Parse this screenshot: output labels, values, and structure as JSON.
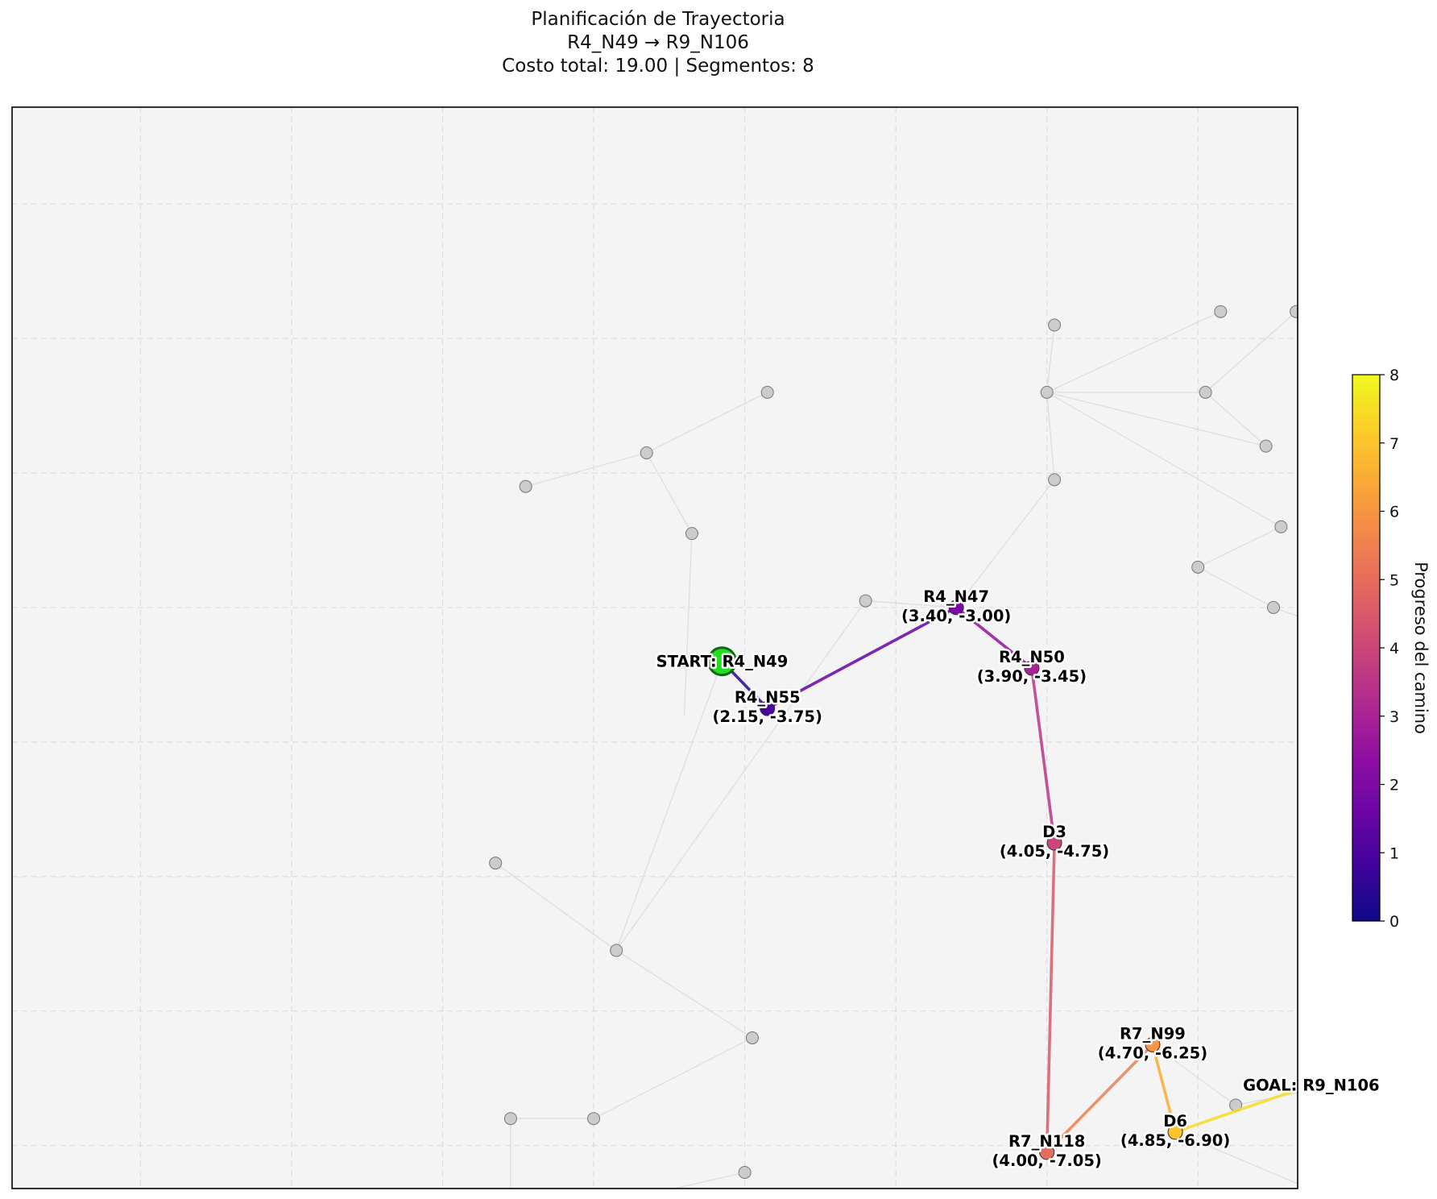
{
  "title": {
    "line1": "Planificación de Trayectoria",
    "line2": "R4_N49 → R9_N106",
    "line3": "Costo total: 19.00 | Segmentos: 8"
  },
  "colors": {
    "background": "#f4f4f4",
    "grid": "#dcdcdc",
    "graph_edge": "#dddddd",
    "graph_node": "#cccccc",
    "start_node": "#22dd22",
    "goal_node": "#ee0000",
    "colormap": "plasma"
  },
  "chart_data": {
    "type": "scatter",
    "grid": true,
    "legend": "none",
    "xlim": [
      -2.85,
      5.66
    ],
    "ylim": [
      -7.32,
      0.72
    ],
    "path": {
      "cost": 19.0,
      "segments": 8,
      "nodes": [
        {
          "id": "R4_N49",
          "label": "START: R4_N49",
          "x": 1.85,
          "y": -3.4,
          "role": "start",
          "progress": 0
        },
        {
          "id": "R4_N55",
          "label": "R4_N55",
          "coord_text": "(2.15, -3.75)",
          "x": 2.15,
          "y": -3.75,
          "progress": 1
        },
        {
          "id": "R4_N47",
          "label": "R4_N47",
          "coord_text": "(3.40, -3.00)",
          "x": 3.4,
          "y": -3.0,
          "progress": 2
        },
        {
          "id": "R4_N50",
          "label": "R4_N50",
          "coord_text": "(3.90, -3.45)",
          "x": 3.9,
          "y": -3.45,
          "progress": 3
        },
        {
          "id": "D3",
          "label": "D3",
          "coord_text": "(4.05, -4.75)",
          "x": 4.05,
          "y": -4.75,
          "progress": 4
        },
        {
          "id": "R7_N118",
          "label": "R7_N118",
          "coord_text": "(4.00, -7.05)",
          "x": 4.0,
          "y": -7.05,
          "progress": 5
        },
        {
          "id": "R7_N99",
          "label": "R7_N99",
          "coord_text": "(4.70, -6.25)",
          "x": 4.7,
          "y": -6.25,
          "progress": 6
        },
        {
          "id": "D6",
          "label": "D6",
          "coord_text": "(4.85, -6.90)",
          "x": 4.85,
          "y": -6.9,
          "progress": 7
        },
        {
          "id": "R9_N106",
          "label": "GOAL: R9_N106",
          "x": 5.75,
          "y": -6.55,
          "role": "goal",
          "progress": 8
        }
      ]
    },
    "graph_nodes": [
      [
        4.05,
        -0.9
      ],
      [
        5.15,
        -0.8
      ],
      [
        5.65,
        -0.8
      ],
      [
        4.0,
        -1.4
      ],
      [
        5.05,
        -1.4
      ],
      [
        5.45,
        -1.8
      ],
      [
        4.05,
        -2.05
      ],
      [
        5.55,
        -2.4
      ],
      [
        5.0,
        -2.7
      ],
      [
        5.5,
        -3.0
      ],
      [
        6.25,
        -3.3
      ],
      [
        2.15,
        -1.4
      ],
      [
        1.35,
        -1.85
      ],
      [
        0.55,
        -2.1
      ],
      [
        1.65,
        -2.45
      ],
      [
        2.8,
        -2.95
      ],
      [
        0.35,
        -4.9
      ],
      [
        1.15,
        -5.55
      ],
      [
        2.05,
        -6.2
      ],
      [
        0.45,
        -6.8
      ],
      [
        1.0,
        -6.8
      ],
      [
        2.0,
        -7.2
      ],
      [
        0.45,
        -7.6
      ],
      [
        5.95,
        -5.95
      ],
      [
        6.15,
        -6.5
      ],
      [
        5.25,
        -6.7
      ],
      [
        5.8,
        -7.35
      ]
    ],
    "graph_edges": [
      [
        [
          2.15,
          -1.4
        ],
        [
          1.35,
          -1.85
        ]
      ],
      [
        [
          1.35,
          -1.85
        ],
        [
          0.55,
          -2.1
        ]
      ],
      [
        [
          1.35,
          -1.85
        ],
        [
          1.65,
          -2.45
        ]
      ],
      [
        [
          1.65,
          -2.45
        ],
        [
          1.6,
          -3.8
        ]
      ],
      [
        [
          4.0,
          -1.4
        ],
        [
          4.05,
          -0.9
        ]
      ],
      [
        [
          4.0,
          -1.4
        ],
        [
          5.05,
          -1.4
        ]
      ],
      [
        [
          4.0,
          -1.4
        ],
        [
          5.45,
          -1.8
        ]
      ],
      [
        [
          4.0,
          -1.4
        ],
        [
          5.15,
          -0.8
        ]
      ],
      [
        [
          4.0,
          -1.4
        ],
        [
          5.55,
          -2.4
        ]
      ],
      [
        [
          4.0,
          -1.4
        ],
        [
          4.05,
          -2.05
        ]
      ],
      [
        [
          5.05,
          -1.4
        ],
        [
          5.65,
          -0.8
        ]
      ],
      [
        [
          5.05,
          -1.4
        ],
        [
          5.45,
          -1.8
        ]
      ],
      [
        [
          4.05,
          -2.05
        ],
        [
          3.4,
          -3.0
        ]
      ],
      [
        [
          5.55,
          -2.4
        ],
        [
          5.0,
          -2.7
        ]
      ],
      [
        [
          5.0,
          -2.7
        ],
        [
          5.5,
          -3.0
        ]
      ],
      [
        [
          5.5,
          -3.0
        ],
        [
          6.25,
          -3.3
        ]
      ],
      [
        [
          2.8,
          -2.95
        ],
        [
          3.4,
          -3.0
        ]
      ],
      [
        [
          2.8,
          -2.95
        ],
        [
          1.15,
          -5.55
        ]
      ],
      [
        [
          1.85,
          -3.4
        ],
        [
          1.15,
          -5.55
        ]
      ],
      [
        [
          0.35,
          -4.9
        ],
        [
          1.15,
          -5.55
        ]
      ],
      [
        [
          1.15,
          -5.55
        ],
        [
          2.05,
          -6.2
        ]
      ],
      [
        [
          2.05,
          -6.2
        ],
        [
          1.0,
          -6.8
        ]
      ],
      [
        [
          0.45,
          -6.8
        ],
        [
          1.0,
          -6.8
        ]
      ],
      [
        [
          0.45,
          -6.8
        ],
        [
          0.45,
          -7.6
        ]
      ],
      [
        [
          0.45,
          -7.6
        ],
        [
          2.0,
          -7.2
        ]
      ],
      [
        [
          5.95,
          -5.95
        ],
        [
          6.15,
          -6.5
        ]
      ],
      [
        [
          6.15,
          -6.5
        ],
        [
          5.25,
          -6.7
        ]
      ],
      [
        [
          5.25,
          -6.7
        ],
        [
          4.7,
          -6.25
        ]
      ],
      [
        [
          4.85,
          -6.9
        ],
        [
          5.8,
          -7.35
        ]
      ]
    ]
  },
  "colorbar": {
    "label": "Progreso del camino",
    "ticks": [
      "0",
      "1",
      "2",
      "3",
      "4",
      "5",
      "6",
      "7",
      "8"
    ],
    "min": 0,
    "max": 8
  }
}
